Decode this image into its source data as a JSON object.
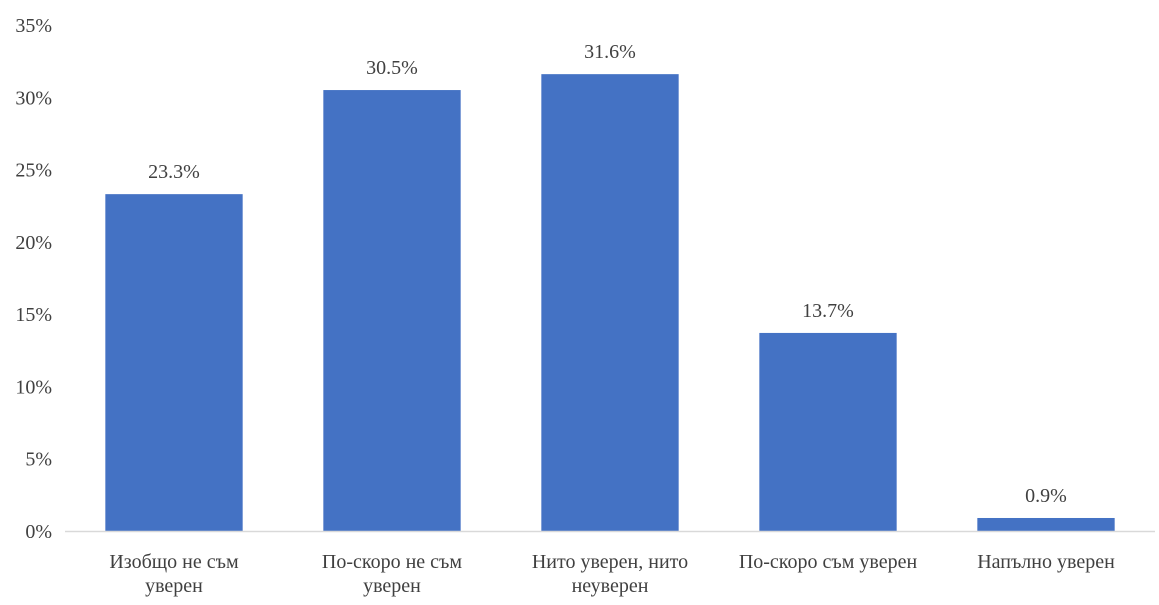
{
  "chart_data": {
    "type": "bar",
    "categories": [
      [
        "Изобщо не съм",
        "уверен"
      ],
      [
        "По-скоро не съм",
        "уверен"
      ],
      [
        "Нито уверен, нито",
        "неуверен"
      ],
      [
        "По-скоро съм уверен"
      ],
      [
        "Напълно уверен"
      ]
    ],
    "values": [
      23.3,
      30.5,
      31.6,
      13.7,
      0.9
    ],
    "data_labels": [
      "23.3%",
      "30.5%",
      "31.6%",
      "13.7%",
      "0.9%"
    ],
    "ylim": [
      0,
      35
    ],
    "y_ticks": [
      0,
      5,
      10,
      15,
      20,
      25,
      30,
      35
    ],
    "y_tick_labels": [
      "0%",
      "5%",
      "10%",
      "15%",
      "20%",
      "25%",
      "30%",
      "35%"
    ],
    "title": "",
    "xlabel": "",
    "ylabel": "",
    "grid": false,
    "legend": "none",
    "bar_color": "#4472C4"
  }
}
